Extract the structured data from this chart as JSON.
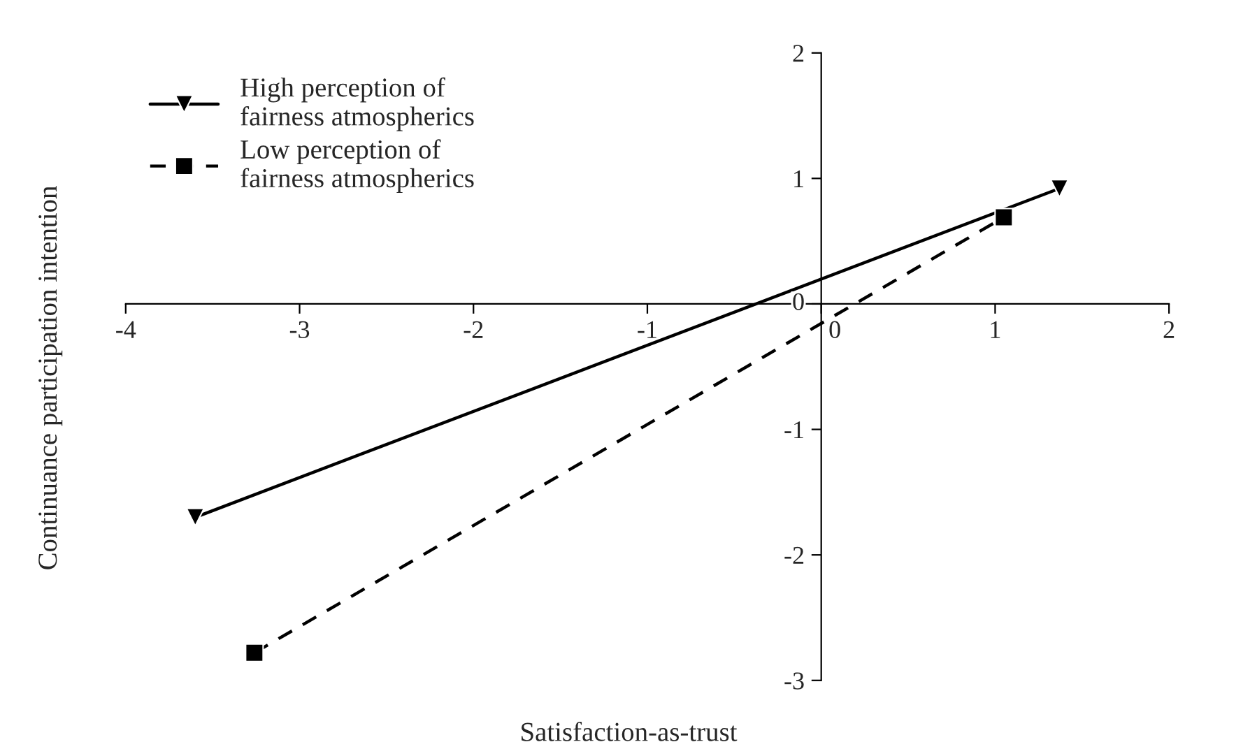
{
  "chart_data": {
    "type": "line",
    "xlabel": "Satisfaction-as-trust",
    "ylabel": "Continuance participation intention",
    "xlim": [
      -4,
      2
    ],
    "xticks": [
      -4,
      -3,
      -2,
      -1,
      0,
      1,
      2
    ],
    "ylim": [
      -3,
      2
    ],
    "yticks": [
      -3,
      -2,
      -1,
      0,
      1,
      2
    ],
    "legend": "top left",
    "grid": false,
    "series": [
      {
        "name": "High perception of\nfairness atmospherics",
        "color": "#000000",
        "x": [
          -3.6,
          1.37
        ],
        "values": [
          -1.7,
          0.92
        ],
        "marker": "triangle",
        "line_style": "solid"
      },
      {
        "name": "Low perception of\nfairness atmospherics",
        "color": "#000000",
        "x": [
          -3.26,
          1.05
        ],
        "values": [
          -2.78,
          0.69
        ],
        "marker": "square",
        "line_style": "dashed"
      }
    ]
  }
}
